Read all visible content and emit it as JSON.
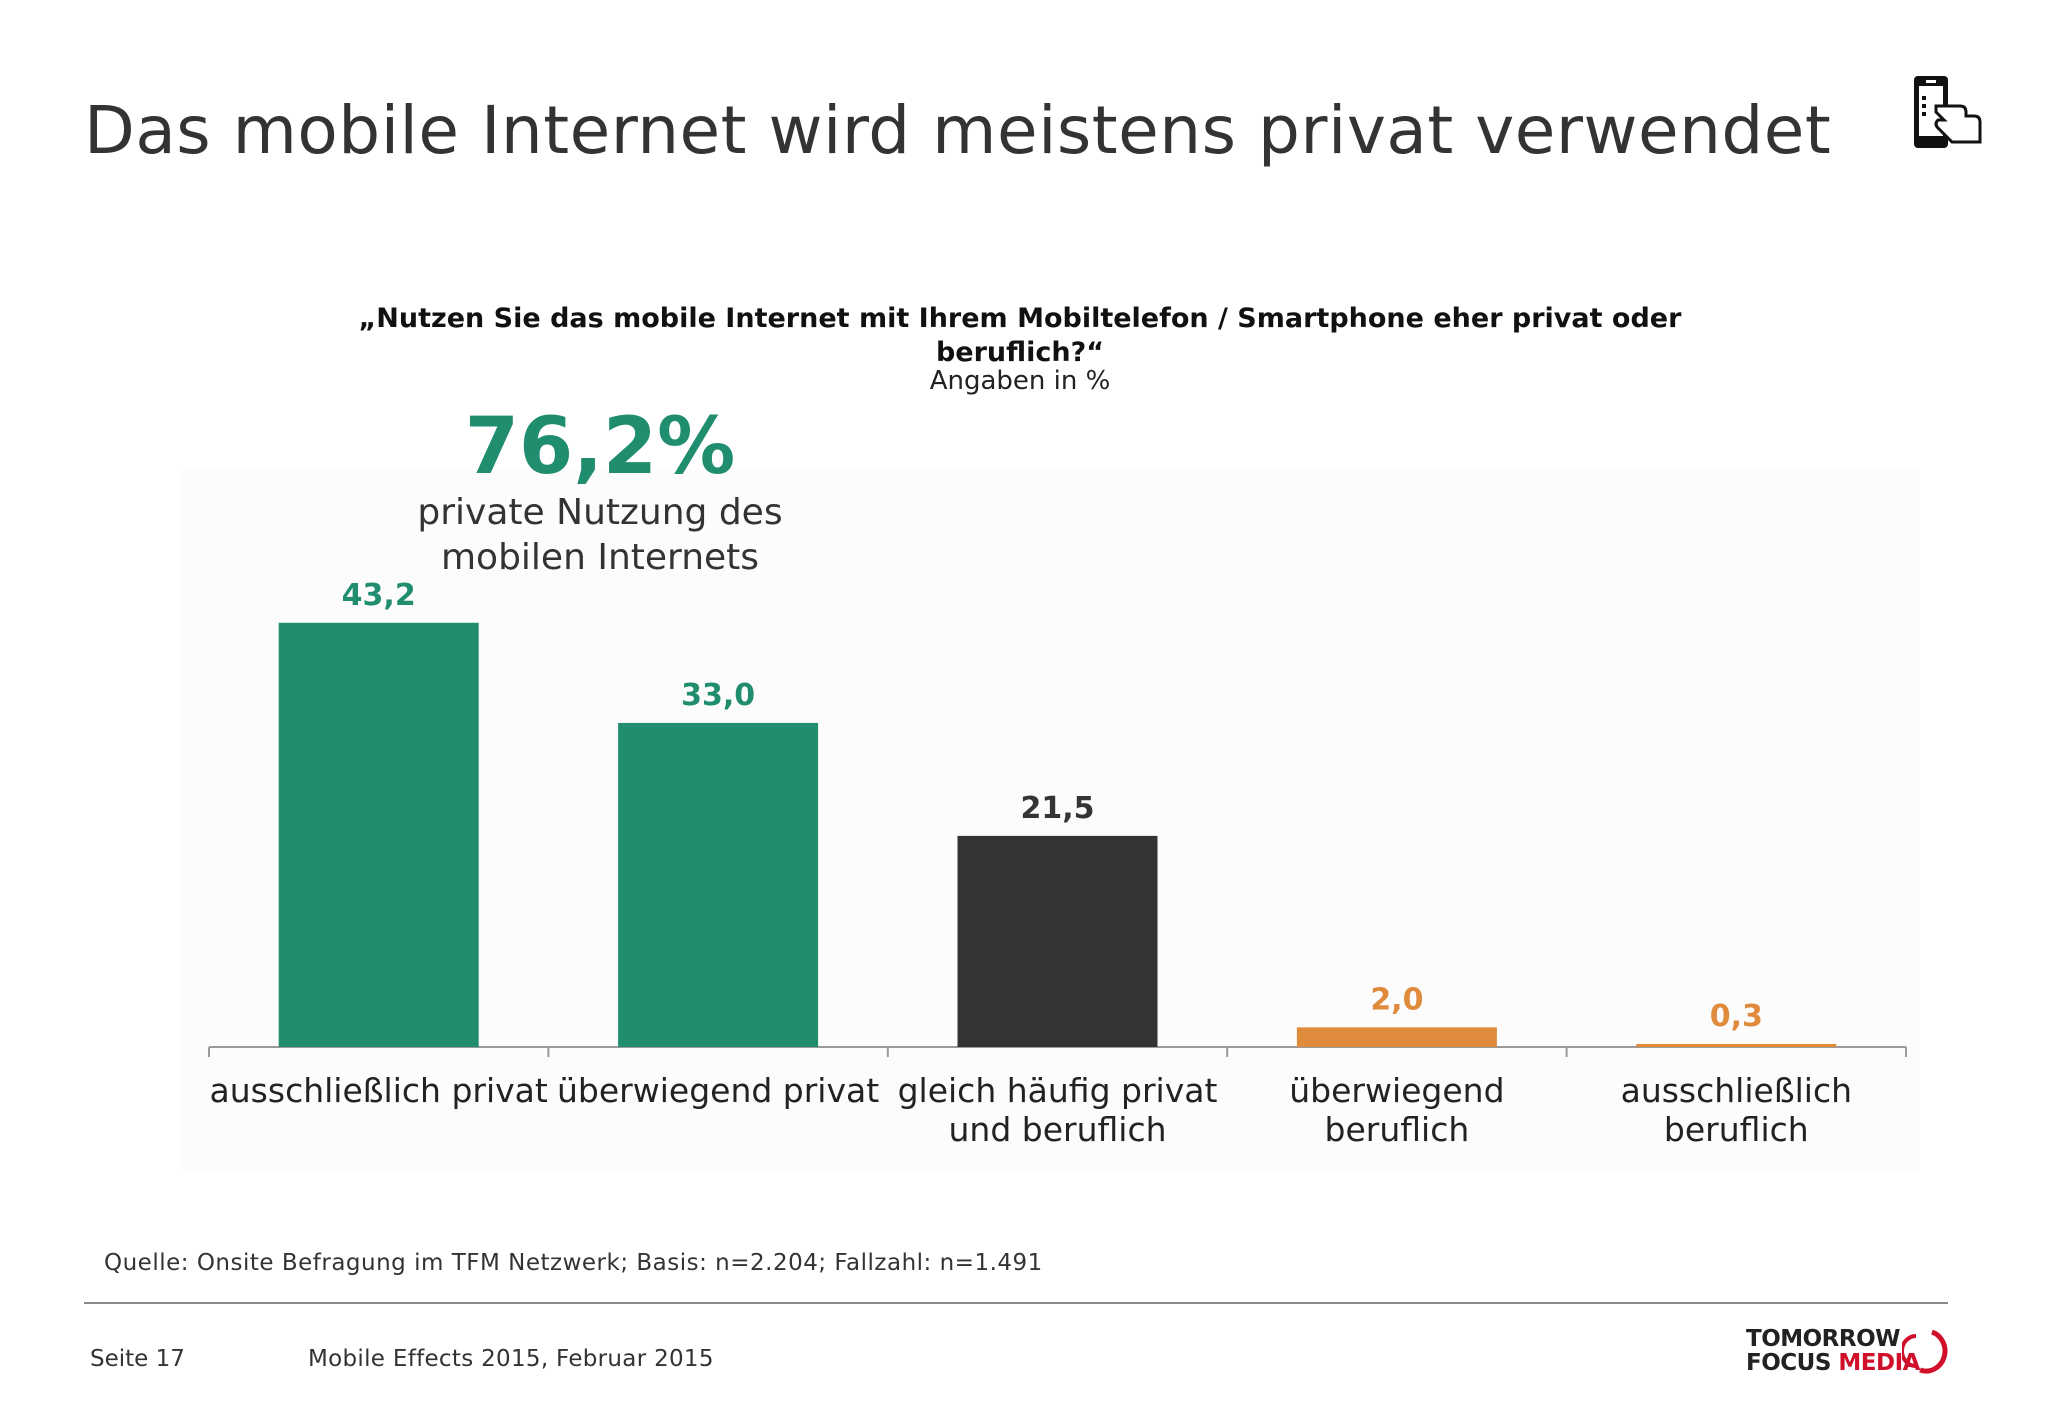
{
  "page": {
    "title": "Das mobile Internet wird meistens privat verwendet",
    "source": "Quelle: Onsite Befragung im TFM Netzwerk; Basis: n=2.204; Fallzahl: n=1.491",
    "page_number": "Seite 17",
    "footer_text": "Mobile Effects 2015, Februar 2015",
    "logo_line1": "TOMORROW",
    "logo_line2_a": "FOCUS",
    "logo_line2_b": "MEDIA",
    "icon": "smartphone-hand-icon"
  },
  "highlight": {
    "value": "76,2%",
    "caption_line1": "private Nutzung des",
    "caption_line2": "mobilen Internets"
  },
  "colors": {
    "private": "#218d6f",
    "neutral": "#343336",
    "business": "#e08a3c",
    "logo_red": "#d0102a"
  },
  "chart_data": {
    "type": "bar",
    "title": "„Nutzen Sie das mobile Internet mit Ihrem Mobiltelefon / Smartphone eher privat oder beruflich?“",
    "subtitle": "Angaben in %",
    "categories": [
      [
        "ausschließlich privat"
      ],
      [
        "überwiegend privat"
      ],
      [
        "gleich häufig privat",
        "und beruflich"
      ],
      [
        "überwiegend",
        "beruflich"
      ],
      [
        "ausschließlich",
        "beruflich"
      ]
    ],
    "values": [
      43.2,
      33.0,
      21.5,
      2.0,
      0.3
    ],
    "value_labels": [
      "43,2",
      "33,0",
      "21,5",
      "2,0",
      "0,3"
    ],
    "bar_colors": [
      "#218d6f",
      "#218d6f",
      "#343336",
      "#e08a3c",
      "#e08a3c"
    ],
    "ylim": [
      0,
      50
    ],
    "grid": false,
    "legend": "none"
  }
}
